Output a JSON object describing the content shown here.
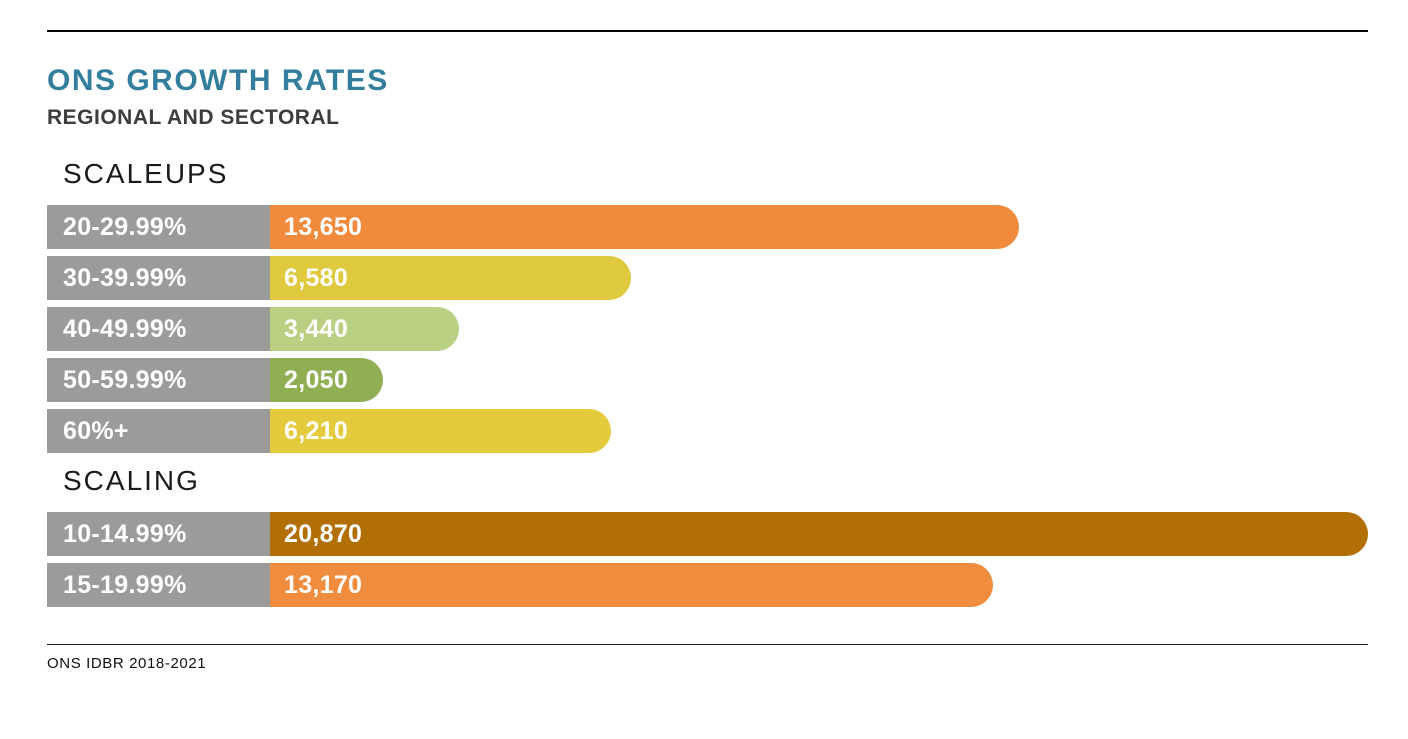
{
  "header": {
    "title": "ONS GROWTH RATES",
    "subtitle": "REGIONAL AND SECTORAL"
  },
  "footer": {
    "source": "ONS IDBR 2018-2021"
  },
  "colors": {
    "title": "#327E9C",
    "subtitle": "#3C3C3B",
    "category_box": "#9B9B99",
    "rule": "#000000",
    "bar_text": "#FFFFFF"
  },
  "chart_data": {
    "type": "bar",
    "orientation": "horizontal",
    "title": "ONS GROWTH RATES",
    "subtitle": "REGIONAL AND SECTORAL",
    "source": "ONS IDBR 2018-2021",
    "xlim": [
      0,
      20000
    ],
    "grid": false,
    "legend": false,
    "value_labels": "inside-bar-start",
    "sections": [
      {
        "label": "SCALEUPS",
        "rows": [
          {
            "category": "20-29.99%",
            "value": 13650,
            "value_label": "13,650",
            "color": "#F08B3D"
          },
          {
            "category": "30-39.99%",
            "value": 6580,
            "value_label": "6,580",
            "color": "#DFC93E"
          },
          {
            "category": "40-49.99%",
            "value": 3440,
            "value_label": "3,440",
            "color": "#B9D083"
          },
          {
            "category": "50-59.99%",
            "value": 2050,
            "value_label": "2,050",
            "color": "#8FAF52"
          },
          {
            "category": "60%+",
            "value": 6210,
            "value_label": "6,210",
            "color": "#E4CB3D"
          }
        ]
      },
      {
        "label": "SCALING",
        "rows": [
          {
            "category": "10-14.99%",
            "value": 20870,
            "value_label": "20,870",
            "color": "#B26F05"
          },
          {
            "category": "15-19.99%",
            "value": 13170,
            "value_label": "13,170",
            "color": "#F08C3E"
          }
        ]
      }
    ]
  }
}
